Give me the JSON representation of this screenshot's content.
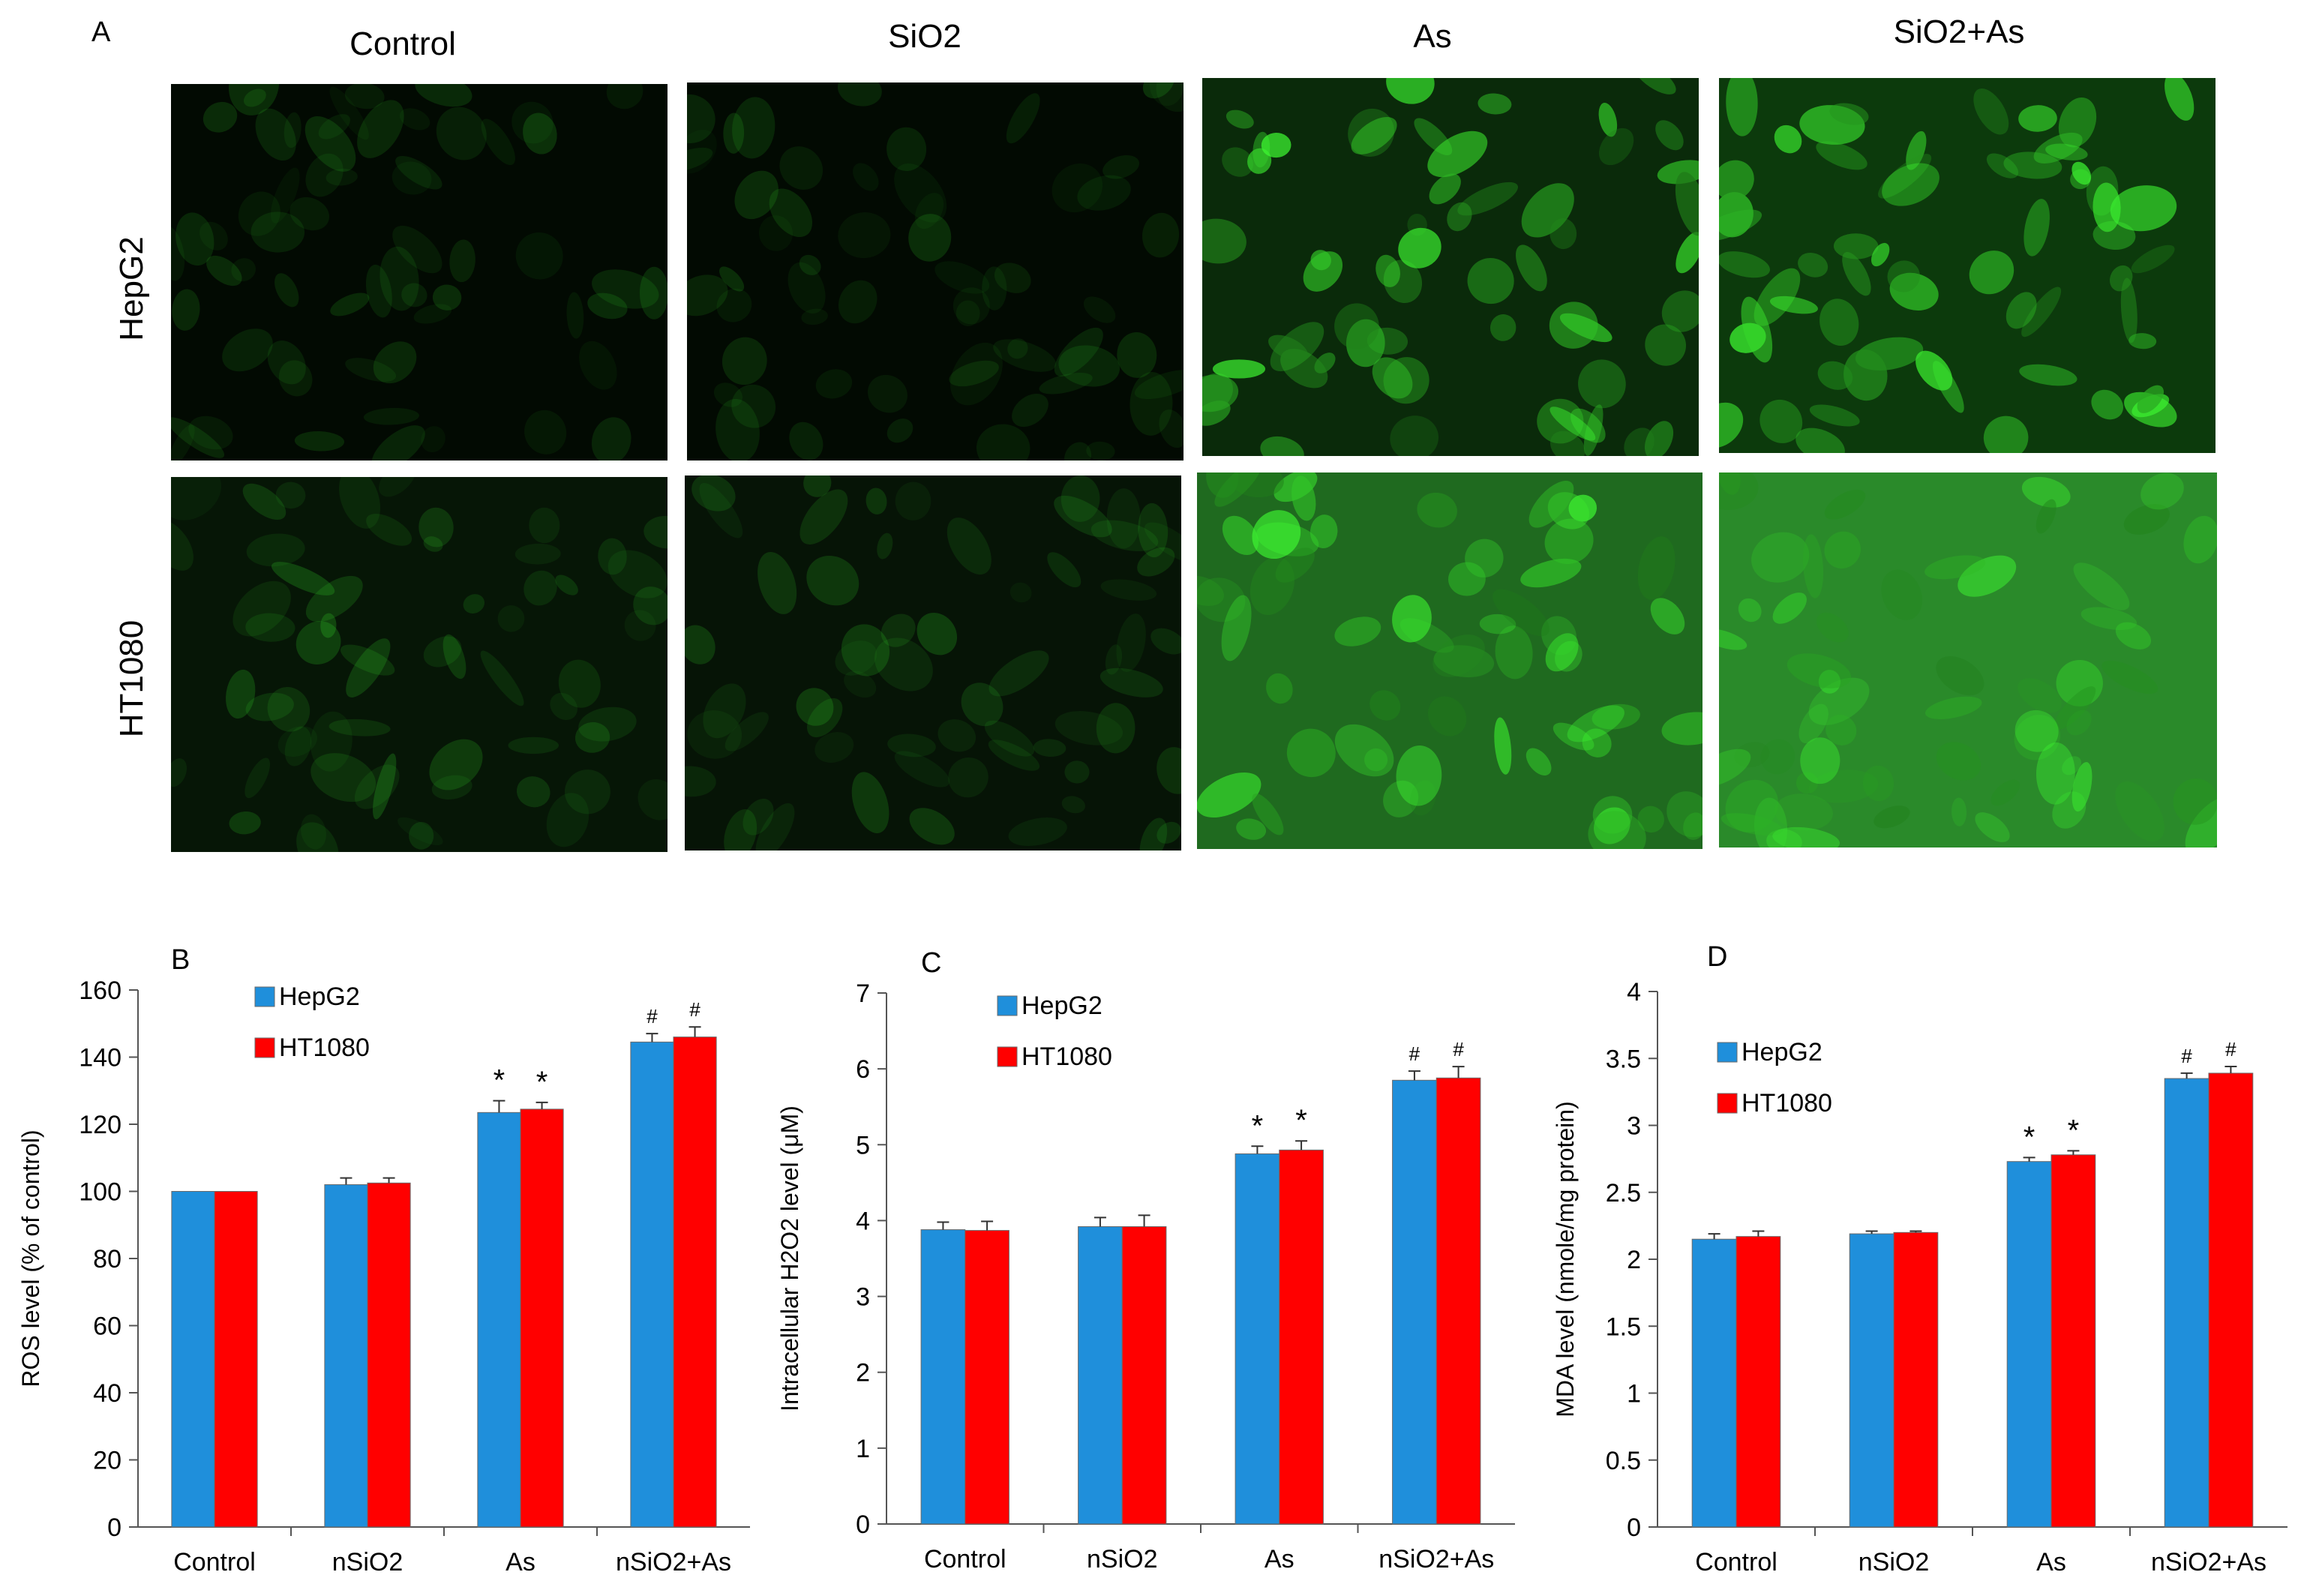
{
  "figure": {
    "panel_A_letter": "A",
    "columns": [
      "Control",
      "SiO2",
      "As",
      "SiO2+As"
    ],
    "rows": [
      "HepG2",
      "HT1080"
    ]
  },
  "chart_data": [
    {
      "type": "bar",
      "panel": "B",
      "categories": [
        "Control",
        "nSiO2",
        "As",
        "nSiO2+As"
      ],
      "series": [
        {
          "name": "HepG2",
          "color": "#1f8fdb",
          "values": [
            100,
            102,
            123.5,
            144.5
          ],
          "errors": [
            0,
            2,
            3.5,
            2.5
          ]
        },
        {
          "name": "HT1080",
          "color": "#ff0000",
          "values": [
            100,
            102.5,
            124.5,
            146
          ],
          "errors": [
            0,
            1.5,
            2,
            3
          ]
        }
      ],
      "annotations": [
        "",
        "",
        "*",
        "#"
      ],
      "ylabel": "ROS level (% of control)",
      "ylim": [
        0,
        160
      ],
      "yticks": [
        0,
        20,
        40,
        60,
        80,
        100,
        120,
        140,
        160
      ],
      "legend": "top-left",
      "grid": false
    },
    {
      "type": "bar",
      "panel": "C",
      "categories": [
        "Control",
        "nSiO2",
        "As",
        "nSiO2+As"
      ],
      "series": [
        {
          "name": "HepG2",
          "color": "#1f8fdb",
          "values": [
            3.88,
            3.92,
            4.88,
            5.85
          ],
          "errors": [
            0.1,
            0.12,
            0.1,
            0.12
          ]
        },
        {
          "name": "HT1080",
          "color": "#ff0000",
          "values": [
            3.87,
            3.92,
            4.93,
            5.88
          ],
          "errors": [
            0.12,
            0.15,
            0.12,
            0.15
          ]
        }
      ],
      "annotations": [
        "",
        "",
        "*",
        "#"
      ],
      "ylabel": "Intracellular H2O2 level (μM)",
      "ylim": [
        0,
        7
      ],
      "yticks": [
        0,
        1,
        2,
        3,
        4,
        5,
        6,
        7
      ],
      "legend": "top-left",
      "grid": false
    },
    {
      "type": "bar",
      "panel": "D",
      "categories": [
        "Control",
        "nSiO2",
        "As",
        "nSiO2+As"
      ],
      "series": [
        {
          "name": "HepG2",
          "color": "#1f8fdb",
          "values": [
            2.15,
            2.19,
            2.73,
            3.35
          ],
          "errors": [
            0.04,
            0.02,
            0.03,
            0.04
          ]
        },
        {
          "name": "HT1080",
          "color": "#ff0000",
          "values": [
            2.17,
            2.2,
            2.78,
            3.39
          ],
          "errors": [
            0.04,
            0.01,
            0.03,
            0.05
          ]
        }
      ],
      "annotations": [
        "",
        "",
        "*",
        "#"
      ],
      "ylabel": "MDA level (nmole/mg protein)",
      "ylim": [
        0,
        4
      ],
      "yticks": [
        "0",
        "0.5",
        "1",
        "1.5",
        "2",
        "2.5",
        "3",
        "3.5",
        "4"
      ],
      "legend": "top-left",
      "grid": false
    }
  ]
}
